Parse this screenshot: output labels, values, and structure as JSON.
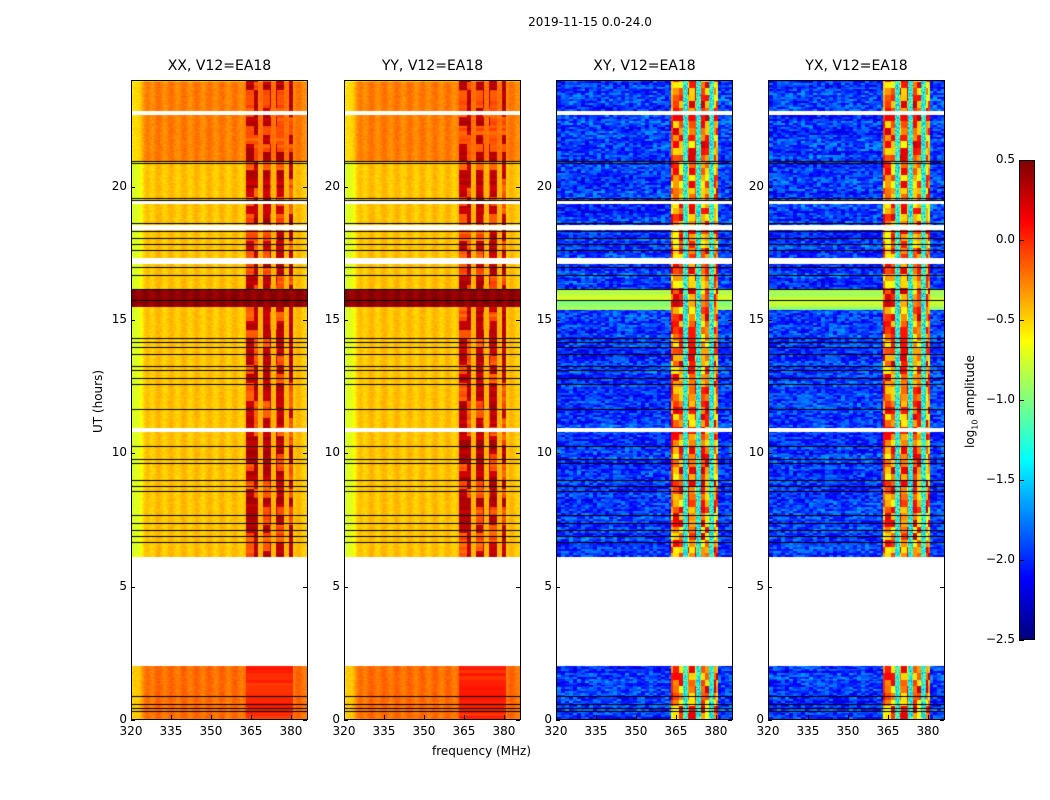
{
  "chart_data": {
    "type": "heatmap",
    "title": "2019-11-15 0.0-24.0",
    "xlabel": "frequency (MHz)",
    "ylabel": "UT (hours)",
    "xlim": [
      320,
      386.4
    ],
    "ylim": [
      0,
      24
    ],
    "xticks": [
      "320",
      "335",
      "350",
      "365",
      "380"
    ],
    "xtick_values": [
      320,
      335,
      350,
      365,
      380
    ],
    "yticks": [
      "0",
      "5",
      "10",
      "15",
      "20"
    ],
    "ytick_values": [
      0,
      5,
      10,
      15,
      20
    ],
    "colorbar": {
      "label": "log10 amplitude",
      "label_main": "log",
      "label_sub": "10",
      "label_rest": " amplitude",
      "range": [
        -2.5,
        0.5
      ],
      "ticks": [
        "0.5",
        "0.0",
        "−0.5",
        "−1.0",
        "−1.5",
        "−2.0",
        "−2.5"
      ],
      "tick_values": [
        0.5,
        0.0,
        -0.5,
        -1.0,
        -1.5,
        -2.0,
        -2.5
      ],
      "colormap": "jet"
    },
    "panels": [
      {
        "title": "XX, V12=EA18",
        "kind": "parallel"
      },
      {
        "title": "YY, V12=EA18",
        "kind": "parallel"
      },
      {
        "title": "XY, V12=EA18",
        "kind": "cross"
      },
      {
        "title": "YX, V12=EA18",
        "kind": "cross"
      }
    ],
    "flagged_hours": [
      [
        2.0,
        6.1
      ],
      [
        10.8,
        10.95
      ],
      [
        17.15,
        17.35
      ],
      [
        18.4,
        18.6
      ],
      [
        19.4,
        19.55
      ],
      [
        22.75,
        22.9
      ]
    ],
    "black_line_hours": [
      21.0,
      20.92,
      19.6,
      19.52,
      18.67,
      18.37,
      18.1,
      17.85,
      17.66,
      17.0,
      16.72,
      16.16,
      15.75,
      14.32,
      14.17,
      14.0,
      13.72,
      13.27,
      13.12,
      12.82,
      12.6,
      11.66,
      10.27,
      9.79,
      9.64,
      9.0,
      8.77,
      8.59,
      7.69,
      7.39,
      7.12,
      6.9,
      6.64,
      0.86,
      0.56,
      0.41,
      0.3
    ],
    "rfi_band_mhz": [
      363,
      381
    ],
    "rfi_gaps_mhz": [
      368.5,
      373.5,
      378.5
    ],
    "parallel_levels": [
      {
        "hours": [
          0,
          2
        ],
        "value": -0.2
      },
      {
        "hours": [
          6.1,
          15.5
        ],
        "value": -0.45
      },
      {
        "hours": [
          15.5,
          16.2
        ],
        "value": 0.45
      },
      {
        "hours": [
          16.2,
          21.0
        ],
        "value": -0.45
      },
      {
        "hours": [
          21.0,
          24
        ],
        "value": -0.25
      }
    ],
    "cross_base_value": -2.3,
    "rfi_parallel_value": 0.25,
    "rfi_cross_value": -0.2
  }
}
